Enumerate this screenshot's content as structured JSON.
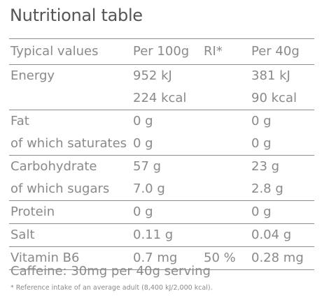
{
  "title": "Nutritional table",
  "headers": {
    "label": "Typical values",
    "per100": "Per 100g",
    "ri": "RI*",
    "per40": "Per 40g"
  },
  "rows": [
    {
      "label": "Energy",
      "per100": "952 kJ",
      "ri": "",
      "per40": "381 kJ"
    },
    {
      "label": "",
      "per100": "224 kcal",
      "ri": "",
      "per40": "90 kcal"
    },
    {
      "label": "Fat",
      "per100": "0 g",
      "ri": "",
      "per40": "0 g"
    },
    {
      "label": "of which saturates",
      "per100": "0 g",
      "ri": "",
      "per40": "0 g"
    },
    {
      "label": "Carbohydrate",
      "per100": "57 g",
      "ri": "",
      "per40": "23 g"
    },
    {
      "label": "of which sugars",
      "per100": "7.0 g",
      "ri": "",
      "per40": "2.8 g"
    },
    {
      "label": "Protein",
      "per100": "0 g",
      "ri": "",
      "per40": "0 g"
    },
    {
      "label": "Salt",
      "per100": "0.11 g",
      "ri": "",
      "per40": "0.04 g"
    },
    {
      "label": "Vitamin B6",
      "per100": "0.7 mg",
      "ri": "50 %",
      "per40": "0.28 mg"
    }
  ],
  "caffeine": "Caffeine: 30mg per 40g serving",
  "footnote": "* Reference intake of an average adult (8,400 kJ/2,000 kcal)."
}
